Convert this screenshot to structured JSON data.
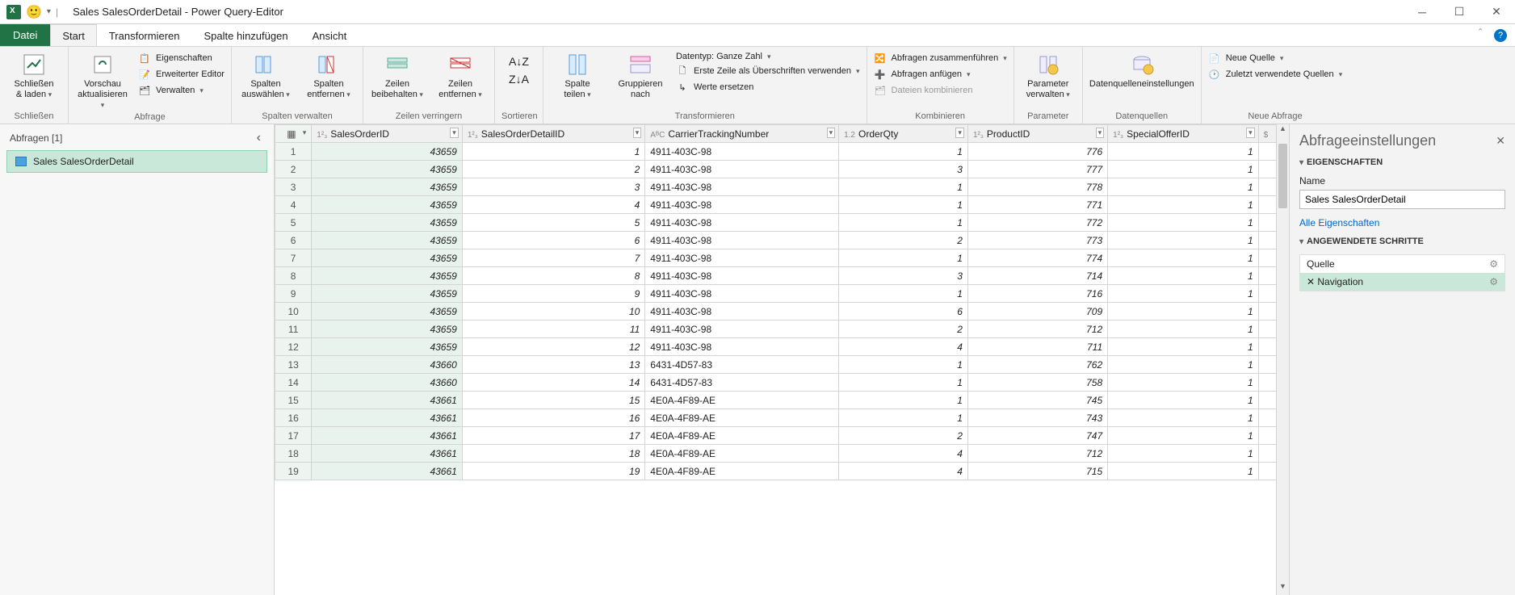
{
  "titlebar": {
    "title": "Sales SalesOrderDetail - Power Query-Editor"
  },
  "ribbonTabs": {
    "file": "Datei",
    "tabs": [
      "Start",
      "Transformieren",
      "Spalte hinzufügen",
      "Ansicht"
    ],
    "activeIndex": 0
  },
  "ribbon": {
    "group_close": {
      "label": "Schließen",
      "close_load": "Schließen\n& laden"
    },
    "group_query": {
      "label": "Abfrage",
      "refresh": "Vorschau\naktualisieren",
      "props": "Eigenschaften",
      "adv": "Erweiterter Editor",
      "manage": "Verwalten"
    },
    "group_cols": {
      "label": "Spalten verwalten",
      "choose": "Spalten\nauswählen",
      "remove": "Spalten\nentfernen"
    },
    "group_rows": {
      "label": "Zeilen verringern",
      "keep": "Zeilen\nbeibehalten",
      "remove": "Zeilen\nentfernen"
    },
    "group_sort": {
      "label": "Sortieren"
    },
    "group_transform": {
      "label": "Transformieren",
      "split": "Spalte\nteilen",
      "group": "Gruppieren\nnach",
      "dtype": "Datentyp: Ganze Zahl",
      "firstrow": "Erste Zeile als Überschriften verwenden",
      "replace": "Werte ersetzen"
    },
    "group_combine": {
      "label": "Kombinieren",
      "merge": "Abfragen zusammenführen",
      "append": "Abfragen anfügen",
      "files": "Dateien kombinieren"
    },
    "group_param": {
      "label": "Parameter",
      "manage": "Parameter\nverwalten"
    },
    "group_datasrc": {
      "label": "Datenquellen",
      "settings": "Datenquelleneinstellungen"
    },
    "group_newq": {
      "label": "Neue Abfrage",
      "new": "Neue Quelle",
      "recent": "Zuletzt verwendete Quellen"
    }
  },
  "queriesPane": {
    "header": "Abfragen [1]",
    "items": [
      "Sales SalesOrderDetail"
    ]
  },
  "settingsPane": {
    "title": "Abfrageeinstellungen",
    "sec_props": "EIGENSCHAFTEN",
    "name_label": "Name",
    "name_value": "Sales SalesOrderDetail",
    "all_props": "Alle Eigenschaften",
    "sec_steps": "ANGEWENDETE SCHRITTE",
    "steps": [
      "Quelle",
      "Navigation"
    ],
    "activeStep": 1
  },
  "grid": {
    "columns": [
      {
        "name": "SalesOrderID",
        "type": "1²₃"
      },
      {
        "name": "SalesOrderDetailID",
        "type": "1²₃"
      },
      {
        "name": "CarrierTrackingNumber",
        "type": "AᴮC"
      },
      {
        "name": "OrderQty",
        "type": "1.2"
      },
      {
        "name": "ProductID",
        "type": "1²₃"
      },
      {
        "name": "SpecialOfferID",
        "type": "1²₃"
      },
      {
        "name": "",
        "type": "$"
      }
    ],
    "rows": [
      [
        43659,
        1,
        "4911-403C-98",
        1,
        776,
        1
      ],
      [
        43659,
        2,
        "4911-403C-98",
        3,
        777,
        1
      ],
      [
        43659,
        3,
        "4911-403C-98",
        1,
        778,
        1
      ],
      [
        43659,
        4,
        "4911-403C-98",
        1,
        771,
        1
      ],
      [
        43659,
        5,
        "4911-403C-98",
        1,
        772,
        1
      ],
      [
        43659,
        6,
        "4911-403C-98",
        2,
        773,
        1
      ],
      [
        43659,
        7,
        "4911-403C-98",
        1,
        774,
        1
      ],
      [
        43659,
        8,
        "4911-403C-98",
        3,
        714,
        1
      ],
      [
        43659,
        9,
        "4911-403C-98",
        1,
        716,
        1
      ],
      [
        43659,
        10,
        "4911-403C-98",
        6,
        709,
        1
      ],
      [
        43659,
        11,
        "4911-403C-98",
        2,
        712,
        1
      ],
      [
        43659,
        12,
        "4911-403C-98",
        4,
        711,
        1
      ],
      [
        43660,
        13,
        "6431-4D57-83",
        1,
        762,
        1
      ],
      [
        43660,
        14,
        "6431-4D57-83",
        1,
        758,
        1
      ],
      [
        43661,
        15,
        "4E0A-4F89-AE",
        1,
        745,
        1
      ],
      [
        43661,
        16,
        "4E0A-4F89-AE",
        1,
        743,
        1
      ],
      [
        43661,
        17,
        "4E0A-4F89-AE",
        2,
        747,
        1
      ],
      [
        43661,
        18,
        "4E0A-4F89-AE",
        4,
        712,
        1
      ],
      [
        43661,
        19,
        "4E0A-4F89-AE",
        4,
        715,
        1
      ]
    ]
  }
}
